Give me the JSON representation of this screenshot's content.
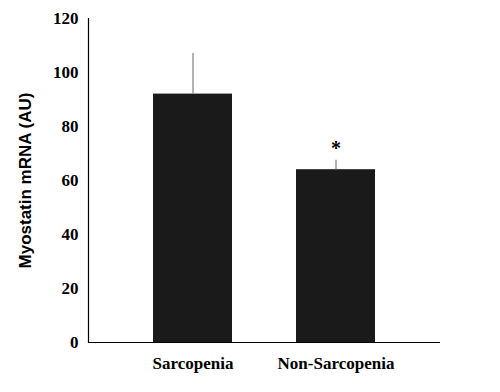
{
  "chart_data": {
    "type": "bar",
    "categories": [
      "Sarcopenia",
      "Non-Sarcopenia"
    ],
    "values": [
      92,
      64
    ],
    "errors": [
      15,
      3.5
    ],
    "color": "#1a1a1a",
    "ylabel": "Myostatin mRNA (AU)",
    "ylim": [
      0,
      120
    ],
    "yticks": [
      0,
      20,
      40,
      60,
      80,
      100,
      120
    ],
    "annotations": [
      {
        "category": "Non-Sarcopenia",
        "text": "*"
      }
    ]
  }
}
